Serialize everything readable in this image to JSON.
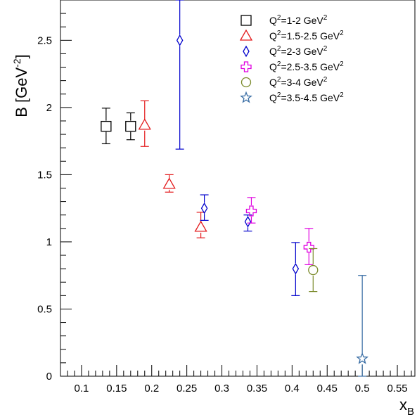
{
  "chart_data": {
    "type": "scatter",
    "title": "",
    "xlabel": {
      "main": "x",
      "sub": "B"
    },
    "ylabel": {
      "main": "B [GeV",
      "sup": "-2",
      "tail": "]"
    },
    "xlim": [
      0.07,
      0.575
    ],
    "ylim": [
      0,
      2.8
    ],
    "grid": false,
    "legend_position": "top-right",
    "x_ticks": [
      "0.1",
      "0.15",
      "0.2",
      "0.25",
      "0.3",
      "0.35",
      "0.4",
      "0.45",
      "0.5",
      "0.55"
    ],
    "y_ticks": [
      "0",
      "0.5",
      "1",
      "1.5",
      "2",
      "2.5"
    ],
    "series": [
      {
        "name": "Q²=1-2 GeV²",
        "legend": {
          "pre": "Q",
          "sup1": "2",
          "mid": "=1-2 GeV",
          "sup2": "2"
        },
        "marker": "square",
        "color": "#000000",
        "points": [
          {
            "x": 0.135,
            "y": 1.86,
            "lo": 1.73,
            "hi": 1.995
          },
          {
            "x": 0.17,
            "y": 1.86,
            "lo": 1.76,
            "hi": 1.96
          }
        ]
      },
      {
        "name": "Q²=1.5-2.5 GeV²",
        "legend": {
          "pre": "Q",
          "sup1": "2",
          "mid": "=1.5-2.5 GeV",
          "sup2": "2"
        },
        "marker": "triangle",
        "color": "#e31a1c",
        "points": [
          {
            "x": 0.19,
            "y": 1.87,
            "lo": 1.71,
            "hi": 2.05
          },
          {
            "x": 0.225,
            "y": 1.43,
            "lo": 1.37,
            "hi": 1.5
          },
          {
            "x": 0.27,
            "y": 1.11,
            "lo": 1.03,
            "hi": 1.22
          }
        ]
      },
      {
        "name": "Q²=2-3 GeV²",
        "legend": {
          "pre": "Q",
          "sup1": "2",
          "mid": "=2-3 GeV",
          "sup2": "2"
        },
        "marker": "diamond",
        "color": "#0000cc",
        "points": [
          {
            "x": 0.24,
            "y": 2.5,
            "lo": 1.69,
            "hi": 2.8
          },
          {
            "x": 0.275,
            "y": 1.25,
            "lo": 1.16,
            "hi": 1.35
          },
          {
            "x": 0.337,
            "y": 1.15,
            "lo": 1.08,
            "hi": 1.2
          },
          {
            "x": 0.405,
            "y": 0.8,
            "lo": 0.6,
            "hi": 0.995
          }
        ]
      },
      {
        "name": "Q²=2.5-3.5 GeV²",
        "legend": {
          "pre": "Q",
          "sup1": "2",
          "mid": "=2.5-3.5 GeV",
          "sup2": "2"
        },
        "marker": "cross",
        "color": "#e000e0",
        "points": [
          {
            "x": 0.342,
            "y": 1.23,
            "lo": 1.14,
            "hi": 1.33
          },
          {
            "x": 0.424,
            "y": 0.96,
            "lo": 0.83,
            "hi": 1.1
          }
        ]
      },
      {
        "name": "Q²=3-4 GeV²",
        "legend": {
          "pre": "Q",
          "sup1": "2",
          "mid": "=3-4 GeV",
          "sup2": "2"
        },
        "marker": "circle",
        "color": "#7a8a2a",
        "points": [
          {
            "x": 0.43,
            "y": 0.79,
            "lo": 0.63,
            "hi": 0.95
          }
        ]
      },
      {
        "name": "Q²=3.5-4.5 GeV²",
        "legend": {
          "pre": "Q",
          "sup1": "2",
          "mid": "=3.5-4.5 GeV",
          "sup2": "2"
        },
        "marker": "star",
        "color": "#3a6ea5",
        "points": [
          {
            "x": 0.5,
            "y": 0.13,
            "lo": 0.0,
            "hi": 0.75
          }
        ]
      }
    ]
  }
}
